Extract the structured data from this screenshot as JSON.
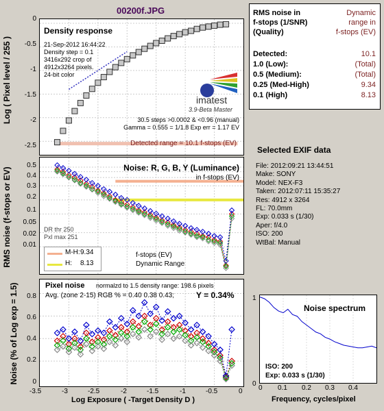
{
  "title": "00200f.JPG",
  "density": {
    "heading": "Density response",
    "info": [
      "21-Sep-2012 16:44:22",
      "Density step = 0.1",
      "3416x292 crop of",
      "4912x3264 pixels.",
      "24-bit color"
    ],
    "logo": "imatest",
    "logo_sub": "3.9-Beta  Master",
    "stats": [
      "30.5 steps >0.0002 & <0.96 (manual)",
      "Gamma = 0.555 = 1/1.8  Exp err = 1.17 EV"
    ],
    "detected_range": "Detected range = 10.1 f-stops (EV)",
    "ylabel": "Log ( Pixel level / 255 )",
    "yticks": [
      "0",
      "-0.5",
      "-1",
      "-1.5",
      "-2",
      "-2.5"
    ]
  },
  "noise": {
    "heading": "Noise: R, G, B, Y (Luminance)",
    "sub": "in f-stops (EV)",
    "dr_thr": "DR thr 250",
    "pxl_max": "Pxl max 251",
    "ylabel": "RMS noise (f-stops or EV)",
    "yticks": [
      "0.5",
      "0.4",
      "0.3",
      "0.2",
      "0.1",
      "0.05",
      "0.02",
      "0.01"
    ],
    "legend": [
      {
        "label": "M-H:",
        "value": "9.34",
        "color": "#f4b090"
      },
      {
        "label": "H:",
        "value": "8.13",
        "color": "#e8e840"
      }
    ],
    "legend_note": [
      "f-stops (EV)",
      "Dynamic Range"
    ]
  },
  "pixel": {
    "heading": "Pixel noise",
    "norm": "normalzd to 1.5 density range: 198.6 pixels",
    "avg": "Avg. (zone 2-15) RGB % = 0.40  0.38  0.43;",
    "y_value": "Y = 0.34%",
    "ylabel": "Noise (% of Log exp = 1.5)",
    "yticks": [
      "0.8",
      "0.6",
      "0.4",
      "0.2",
      "0"
    ],
    "xticks": [
      "-3.5",
      "-3",
      "-2.5",
      "-2",
      "-1.5",
      "-1",
      "-0.5",
      "0"
    ],
    "xlabel": "Log Exposure ( -Target Density D )"
  },
  "table": {
    "head_left": [
      "RMS noise in",
      "f-stops (1/SNR)",
      "(Quality)"
    ],
    "head_right": [
      "Dynamic",
      "range in",
      "f-stops (EV)"
    ],
    "rows": [
      {
        "label": "Detected:",
        "value": "10.1"
      },
      {
        "label": "1.0  (Low):",
        "value": "(Total)"
      },
      {
        "label": "0.5  (Medium):",
        "value": "(Total)"
      },
      {
        "label": "0.25 (Med-High)",
        "value": "9.34"
      },
      {
        "label": "0.1  (High)",
        "value": "8.13"
      }
    ]
  },
  "exif": {
    "heading": "Selected EXIF data",
    "lines": [
      "File:  2012:09:21 13:44:51",
      "Make:  SONY",
      "Model: NEX-F3",
      "Taken:  2012:07:11 15:35:27",
      "Res:    4912 x 3264",
      "FL:  70.0mm",
      "Exp:    0.033 s  (1/30)",
      "Aper:  f/4.0",
      "ISO:   200",
      "WtBal: Manual"
    ]
  },
  "spectrum": {
    "title": "Noise spectrum",
    "ytick_top": "1",
    "ytick_bottom": "0",
    "iso": "ISO:   200",
    "exp": "Exp:   0.033 s    (1/30)",
    "xlabel": "Frequency, cycles/pixel",
    "xticks": [
      "0",
      "0.1",
      "0.2",
      "0.3",
      "0.4"
    ]
  },
  "chart_data": [
    {
      "type": "scatter",
      "name_ref": "density",
      "x": [
        -3.2,
        -3.1,
        -3.0,
        -2.9,
        -2.8,
        -2.7,
        -2.6,
        -2.5,
        -2.4,
        -2.3,
        -2.2,
        -2.1,
        -2.0,
        -1.9,
        -1.8,
        -1.7,
        -1.6,
        -1.5,
        -1.4,
        -1.3,
        -1.2,
        -1.1,
        -1.0,
        -0.9,
        -0.8,
        -0.7,
        -0.6,
        -0.5,
        -0.4,
        -0.3
      ],
      "y": [
        -2.52,
        -2.28,
        -2.06,
        -1.86,
        -1.69,
        -1.53,
        -1.39,
        -1.26,
        -1.14,
        -1.03,
        -0.93,
        -0.84,
        -0.76,
        -0.68,
        -0.61,
        -0.54,
        -0.48,
        -0.42,
        -0.37,
        -0.32,
        -0.27,
        -0.23,
        -0.19,
        -0.16,
        -0.12,
        -0.09,
        -0.07,
        -0.05,
        -0.03,
        -0.02
      ],
      "ylim": [
        -2.7,
        0
      ]
    },
    {
      "type": "line",
      "name_ref": "noise",
      "yscale": "log",
      "x": [
        -3.2,
        -3.1,
        -3.0,
        -2.9,
        -2.8,
        -2.7,
        -2.6,
        -2.5,
        -2.4,
        -2.3,
        -2.2,
        -2.1,
        -2.0,
        -1.9,
        -1.8,
        -1.7,
        -1.6,
        -1.5,
        -1.4,
        -1.3,
        -1.2,
        -1.1,
        -1.0,
        -0.9,
        -0.8,
        -0.7,
        -0.6,
        -0.5,
        -0.4,
        -0.3,
        -0.2
      ],
      "series": [
        {
          "name": "R",
          "color": "#cc0000",
          "values": [
            0.45,
            0.4,
            0.34,
            0.3,
            0.26,
            0.22,
            0.19,
            0.16,
            0.14,
            0.12,
            0.1,
            0.09,
            0.08,
            0.07,
            0.06,
            0.055,
            0.048,
            0.042,
            0.037,
            0.033,
            0.029,
            0.026,
            0.023,
            0.021,
            0.019,
            0.017,
            0.016,
            0.014,
            0.013,
            0.004,
            0.05
          ]
        },
        {
          "name": "G",
          "color": "#00aa00",
          "values": [
            0.42,
            0.37,
            0.31,
            0.27,
            0.23,
            0.2,
            0.17,
            0.15,
            0.13,
            0.11,
            0.095,
            0.082,
            0.072,
            0.064,
            0.056,
            0.05,
            0.044,
            0.039,
            0.034,
            0.03,
            0.027,
            0.024,
            0.021,
            0.019,
            0.017,
            0.016,
            0.014,
            0.013,
            0.012,
            0.0038,
            0.045
          ]
        },
        {
          "name": "B",
          "color": "#0000cc",
          "values": [
            0.55,
            0.48,
            0.42,
            0.36,
            0.31,
            0.27,
            0.23,
            0.2,
            0.17,
            0.15,
            0.13,
            0.11,
            0.1,
            0.086,
            0.075,
            0.066,
            0.058,
            0.051,
            0.045,
            0.04,
            0.035,
            0.031,
            0.028,
            0.025,
            0.023,
            0.021,
            0.019,
            0.017,
            0.016,
            0.005,
            0.06
          ]
        },
        {
          "name": "Y",
          "color": "#888888",
          "values": [
            0.4,
            0.35,
            0.3,
            0.26,
            0.22,
            0.19,
            0.165,
            0.14,
            0.12,
            0.105,
            0.09,
            0.078,
            0.068,
            0.06,
            0.053,
            0.047,
            0.041,
            0.036,
            0.032,
            0.028,
            0.025,
            0.022,
            0.02,
            0.018,
            0.016,
            0.015,
            0.013,
            0.012,
            0.011,
            0.0035,
            0.04
          ]
        }
      ],
      "reference_lines": [
        {
          "label": "M-H",
          "value": 0.25,
          "color": "#f4b090"
        },
        {
          "label": "H",
          "value": 0.1,
          "color": "#e8e840"
        }
      ]
    },
    {
      "type": "line",
      "name_ref": "pixel",
      "xlim": [
        -3.5,
        0
      ],
      "ylim": [
        0,
        0.9
      ],
      "x": [
        -3.2,
        -3.1,
        -3.0,
        -2.9,
        -2.8,
        -2.7,
        -2.6,
        -2.5,
        -2.4,
        -2.3,
        -2.2,
        -2.1,
        -2.0,
        -1.9,
        -1.8,
        -1.7,
        -1.6,
        -1.5,
        -1.4,
        -1.3,
        -1.2,
        -1.1,
        -1.0,
        -0.9,
        -0.8,
        -0.7,
        -0.6,
        -0.5,
        -0.4,
        -0.3,
        -0.2
      ],
      "series": [
        {
          "name": "R",
          "color": "#cc0000",
          "values": [
            0.38,
            0.42,
            0.35,
            0.4,
            0.33,
            0.45,
            0.37,
            0.41,
            0.39,
            0.47,
            0.43,
            0.5,
            0.46,
            0.55,
            0.51,
            0.6,
            0.52,
            0.58,
            0.48,
            0.55,
            0.5,
            0.52,
            0.47,
            0.42,
            0.45,
            0.4,
            0.36,
            0.3,
            0.25,
            0.06,
            0.2
          ]
        },
        {
          "name": "G",
          "color": "#00aa00",
          "values": [
            0.34,
            0.38,
            0.31,
            0.36,
            0.3,
            0.4,
            0.33,
            0.37,
            0.35,
            0.42,
            0.39,
            0.45,
            0.42,
            0.5,
            0.46,
            0.55,
            0.48,
            0.53,
            0.44,
            0.5,
            0.46,
            0.48,
            0.43,
            0.38,
            0.41,
            0.37,
            0.33,
            0.28,
            0.23,
            0.05,
            0.18
          ]
        },
        {
          "name": "B",
          "color": "#0000cc",
          "values": [
            0.45,
            0.48,
            0.4,
            0.46,
            0.38,
            0.52,
            0.44,
            0.47,
            0.45,
            0.55,
            0.5,
            0.58,
            0.53,
            0.65,
            0.6,
            0.72,
            0.62,
            0.68,
            0.56,
            0.64,
            0.58,
            0.6,
            0.54,
            0.48,
            0.52,
            0.46,
            0.42,
            0.35,
            0.3,
            0.07,
            0.48
          ]
        },
        {
          "name": "Y",
          "color": "#888888",
          "values": [
            0.3,
            0.33,
            0.28,
            0.32,
            0.26,
            0.35,
            0.29,
            0.33,
            0.31,
            0.37,
            0.34,
            0.4,
            0.37,
            0.44,
            0.41,
            0.48,
            0.42,
            0.46,
            0.39,
            0.44,
            0.4,
            0.42,
            0.38,
            0.34,
            0.36,
            0.32,
            0.29,
            0.25,
            0.2,
            0.04,
            0.16
          ]
        }
      ]
    },
    {
      "type": "line",
      "name_ref": "spectrum",
      "xlim": [
        0,
        0.5
      ],
      "ylim": [
        0,
        1
      ],
      "x": [
        0,
        0.02,
        0.04,
        0.06,
        0.08,
        0.1,
        0.12,
        0.14,
        0.16,
        0.18,
        0.2,
        0.22,
        0.24,
        0.26,
        0.28,
        0.3,
        0.32,
        0.34,
        0.36,
        0.38,
        0.4,
        0.42,
        0.44,
        0.46,
        0.48,
        0.5
      ],
      "series": [
        {
          "name": "spectrum",
          "color": "#0000cc",
          "values": [
            0.98,
            0.96,
            0.92,
            0.86,
            0.82,
            0.8,
            0.84,
            0.78,
            0.76,
            0.7,
            0.66,
            0.62,
            0.58,
            0.56,
            0.52,
            0.5,
            0.47,
            0.45,
            0.43,
            0.42,
            0.41,
            0.4,
            0.4,
            0.41,
            0.42,
            0.4
          ]
        }
      ]
    }
  ]
}
